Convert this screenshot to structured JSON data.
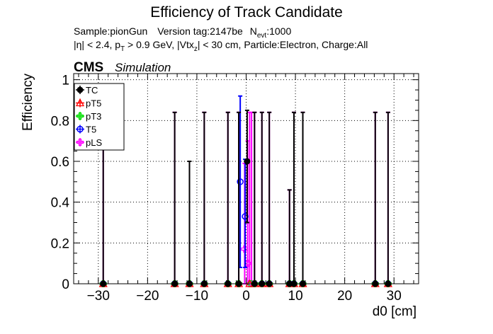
{
  "chart_data": {
    "type": "scatter",
    "title": "Efficiency of Track Candidate",
    "subtitle_line1": {
      "sample": "Sample:pionGun",
      "version": "Version tag:2147be",
      "nevt_main": "N",
      "nevt_sub": "evt",
      "nevt_value": ":1000"
    },
    "subtitle_line2": {
      "eta": "|η| < 2.4, p",
      "pt_sub": "T",
      "pt_rest": " > 0.9 GeV, |Vtx",
      "vtx_sub": "z",
      "rest": "| < 30 cm, Particle:Electron, Charge:All"
    },
    "cms_label": "CMS",
    "simulation_label": "Simulation",
    "xlabel": "d0 [cm]",
    "ylabel": "Efficiency",
    "xlim": [
      -35,
      35
    ],
    "ylim": [
      0,
      1.03
    ],
    "xticks": [
      -30,
      -20,
      -10,
      0,
      10,
      20,
      30
    ],
    "xtick_labels": [
      "−30",
      "−20",
      "−10",
      "0",
      "10",
      "20",
      "30"
    ],
    "yticks": [
      0,
      0.2,
      0.4,
      0.6,
      0.8,
      1
    ],
    "ytick_labels": [
      "0",
      "0.2",
      "0.4",
      "0.6",
      "0.8",
      "1"
    ],
    "grid": true,
    "legend_position": "top-left",
    "series": [
      {
        "name": "TC",
        "color": "#000000",
        "marker": "filled-circle",
        "points": [
          {
            "x": -29,
            "y": 0,
            "up": 0.84
          },
          {
            "x": -14.5,
            "y": 0,
            "up": 0.84
          },
          {
            "x": -11.5,
            "y": 0,
            "up": 0.6
          },
          {
            "x": -8.5,
            "y": 0,
            "up": 0.84
          },
          {
            "x": -3.7,
            "y": 0,
            "up": 0.84
          },
          {
            "x": -1.5,
            "y": 0,
            "up": 0.84
          },
          {
            "x": 0.2,
            "y": 0.6,
            "up": 0.25,
            "down": 0.3
          },
          {
            "x": 1.7,
            "y": 0,
            "up": 0.84
          },
          {
            "x": 3.2,
            "y": 0,
            "up": 0.84
          },
          {
            "x": 4.7,
            "y": 0,
            "up": 0.84
          },
          {
            "x": 8.8,
            "y": 0,
            "up": 0.46
          },
          {
            "x": 9.7,
            "y": 0,
            "up": 0.84
          },
          {
            "x": 11.5,
            "y": 0,
            "up": 0.84
          },
          {
            "x": 26.2,
            "y": 0,
            "up": 0.84
          },
          {
            "x": 28.8,
            "y": 0,
            "up": 0.84
          }
        ]
      },
      {
        "name": "pT5",
        "color": "#ff0000",
        "marker": "open-triangle",
        "points": [
          {
            "x": -29,
            "y": 0
          },
          {
            "x": -14.5,
            "y": 0
          },
          {
            "x": -11.5,
            "y": 0
          },
          {
            "x": -8.5,
            "y": 0
          },
          {
            "x": -3.7,
            "y": 0
          },
          {
            "x": -1.5,
            "y": 0
          },
          {
            "x": 0.7,
            "y": 0
          },
          {
            "x": 1.7,
            "y": 0
          },
          {
            "x": 3.2,
            "y": 0
          },
          {
            "x": 4.7,
            "y": 0
          },
          {
            "x": 8.8,
            "y": 0
          },
          {
            "x": 9.7,
            "y": 0
          },
          {
            "x": 11.5,
            "y": 0
          },
          {
            "x": 26.2,
            "y": 0
          },
          {
            "x": 28.8,
            "y": 0
          }
        ]
      },
      {
        "name": "pT3",
        "color": "#00dd00",
        "marker": "open-cross",
        "points": [
          {
            "x": -29,
            "y": 0
          },
          {
            "x": -14.5,
            "y": 0
          },
          {
            "x": -11.5,
            "y": 0
          },
          {
            "x": -8.5,
            "y": 0
          },
          {
            "x": -3.7,
            "y": 0
          },
          {
            "x": -1.5,
            "y": 0
          },
          {
            "x": 0.9,
            "y": 0
          },
          {
            "x": 1.7,
            "y": 0
          },
          {
            "x": 3.2,
            "y": 0
          },
          {
            "x": 4.7,
            "y": 0
          },
          {
            "x": 8.8,
            "y": 0
          },
          {
            "x": 9.7,
            "y": 0
          },
          {
            "x": 11.5,
            "y": 0
          },
          {
            "x": 26.2,
            "y": 0
          },
          {
            "x": 28.8,
            "y": 0
          }
        ]
      },
      {
        "name": "T5",
        "color": "#0000ff",
        "marker": "open-circle",
        "points": [
          {
            "x": -29,
            "y": 0
          },
          {
            "x": -14.5,
            "y": 0
          },
          {
            "x": -11.5,
            "y": 0
          },
          {
            "x": -8.5,
            "y": 0
          },
          {
            "x": -3.7,
            "y": 0
          },
          {
            "x": -1.2,
            "y": 0.5,
            "up": 0.42,
            "down": 0.42
          },
          {
            "x": -0.2,
            "y": 0.33,
            "up": 0.28,
            "down": 0.25
          },
          {
            "x": 1.7,
            "y": 0
          },
          {
            "x": 3.2,
            "y": 0
          },
          {
            "x": 4.7,
            "y": 0
          },
          {
            "x": 8.8,
            "y": 0
          },
          {
            "x": 9.7,
            "y": 0
          },
          {
            "x": 11.5,
            "y": 0
          },
          {
            "x": 26.2,
            "y": 0
          },
          {
            "x": 28.8,
            "y": 0
          }
        ]
      },
      {
        "name": "pLS",
        "color": "#ff00ff",
        "marker": "open-cross",
        "points": [
          {
            "x": -29,
            "y": 0,
            "up": 0.84
          },
          {
            "x": -14.5,
            "y": 0,
            "up": 0.84
          },
          {
            "x": -11.5,
            "y": 0,
            "up": 0.6
          },
          {
            "x": -8.5,
            "y": 0,
            "up": 0.84
          },
          {
            "x": -3.7,
            "y": 0,
            "up": 0.84
          },
          {
            "x": -1.5,
            "y": 0,
            "up": 0.84
          },
          {
            "x": -0.3,
            "y": 0.17,
            "up": 0.42,
            "down": 0.17
          },
          {
            "x": 0.3,
            "y": 0.1,
            "up": 0.6,
            "down": 0.1
          },
          {
            "x": 0.7,
            "y": 0,
            "up": 0.84
          },
          {
            "x": 1.1,
            "y": 0,
            "up": 0.84
          },
          {
            "x": 1.7,
            "y": 0,
            "up": 0.84
          },
          {
            "x": 3.2,
            "y": 0,
            "up": 0.84
          },
          {
            "x": 4.7,
            "y": 0,
            "up": 0.84
          },
          {
            "x": 8.8,
            "y": 0,
            "up": 0.46
          },
          {
            "x": 9.7,
            "y": 0,
            "up": 0.84
          },
          {
            "x": 11.5,
            "y": 0,
            "up": 0.84
          },
          {
            "x": 26.2,
            "y": 0,
            "up": 0.84
          },
          {
            "x": 28.8,
            "y": 0,
            "up": 0.84
          }
        ]
      }
    ]
  }
}
